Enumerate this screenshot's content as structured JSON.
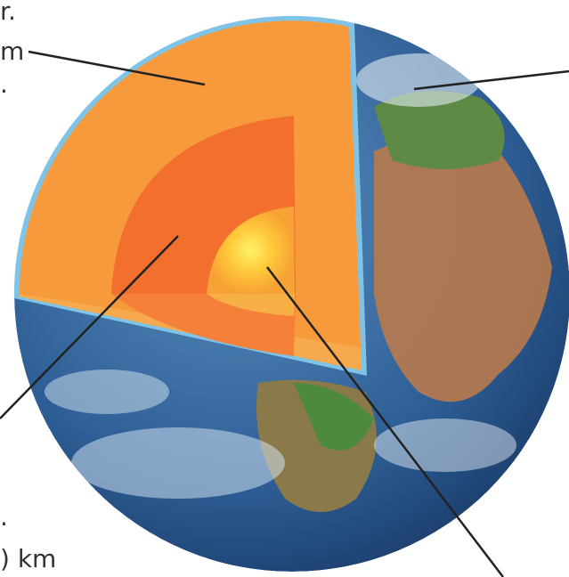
{
  "labels": {
    "top": "r.",
    "crust": "m",
    "crust_sub": ".",
    "outer_core_sub": ".",
    "outer_core_km": ") km"
  }
}
